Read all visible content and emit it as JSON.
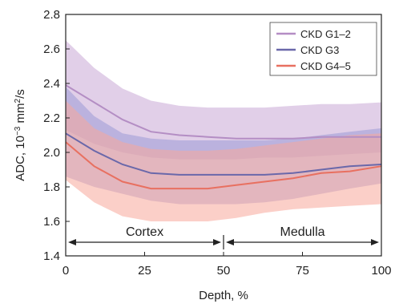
{
  "chart_data": {
    "type": "line",
    "xlabel": "Depth, %",
    "ylabel": {
      "prefix": "ADC, 10",
      "sup": "−3",
      "suffix": " mm",
      "sup2": "2",
      "suffix2": "/s"
    },
    "xlim": [
      0,
      100
    ],
    "ylim": [
      1.4,
      2.8
    ],
    "xticks": [
      0,
      25,
      50,
      75,
      100
    ],
    "yticks": [
      1.4,
      1.6,
      1.8,
      2.0,
      2.2,
      2.4,
      2.6,
      2.8
    ],
    "x": [
      0,
      9,
      18,
      27,
      36,
      45,
      54,
      63,
      72,
      81,
      90,
      100
    ],
    "series": [
      {
        "name": "CKD G1–2",
        "line_color": "#b48ec4",
        "band_color": "#c9a8d6",
        "values": [
          2.39,
          2.29,
          2.19,
          2.12,
          2.1,
          2.09,
          2.08,
          2.08,
          2.08,
          2.09,
          2.09,
          2.09
        ],
        "upper": [
          2.65,
          2.49,
          2.37,
          2.3,
          2.27,
          2.26,
          2.26,
          2.26,
          2.27,
          2.28,
          2.28,
          2.29
        ],
        "lower": [
          2.13,
          2.05,
          2.0,
          1.97,
          1.96,
          1.96,
          1.96,
          1.97,
          1.97,
          1.98,
          1.99,
          2.0
        ]
      },
      {
        "name": "CKD G3",
        "line_color": "#6a68aa",
        "band_color": "#9c9ad6",
        "values": [
          2.11,
          2.01,
          1.93,
          1.88,
          1.87,
          1.87,
          1.87,
          1.87,
          1.88,
          1.9,
          1.92,
          1.93
        ],
        "upper": [
          2.38,
          2.21,
          2.11,
          2.08,
          2.07,
          2.07,
          2.07,
          2.07,
          2.08,
          2.1,
          2.12,
          2.14
        ],
        "lower": [
          1.86,
          1.8,
          1.76,
          1.72,
          1.7,
          1.7,
          1.7,
          1.71,
          1.73,
          1.76,
          1.79,
          1.82
        ]
      },
      {
        "name": "CKD G4–5",
        "line_color": "#e87060",
        "band_color": "#f7a89a",
        "values": [
          2.06,
          1.92,
          1.83,
          1.79,
          1.79,
          1.79,
          1.81,
          1.83,
          1.85,
          1.88,
          1.89,
          1.92
        ],
        "upper": [
          2.3,
          2.14,
          2.06,
          2.02,
          2.01,
          2.01,
          2.02,
          2.04,
          2.06,
          2.08,
          2.1,
          2.11
        ],
        "lower": [
          1.84,
          1.71,
          1.63,
          1.6,
          1.6,
          1.6,
          1.62,
          1.65,
          1.67,
          1.68,
          1.69,
          1.7
        ]
      }
    ],
    "regions": [
      {
        "label": "Cortex",
        "from": 0,
        "to": 50
      },
      {
        "label": "Medulla",
        "from": 50,
        "to": 100
      }
    ],
    "legend_position": "top-right",
    "grid": false
  }
}
